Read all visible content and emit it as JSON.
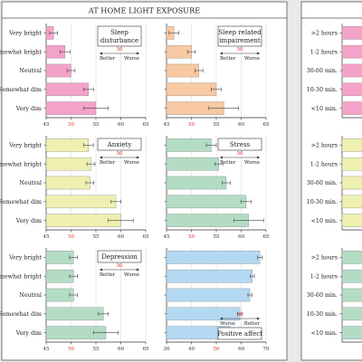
{
  "header": {
    "title": "AT HOME LIGHT EXPOSURE"
  },
  "scale_words": {
    "better": "Better",
    "worse": "Worse"
  },
  "panel_colors": {
    "pink": "#f4a3c8",
    "peach": "#f8c9a2",
    "yellow": "#eef0b0",
    "green": "#b4dcc4",
    "blue": "#b3d9f2",
    "arrow_red": "#d9302a"
  },
  "chart_data": [
    {
      "type": "bar",
      "orientation": "horizontal",
      "title": "Sleep disturbance",
      "title_lines": [
        "Sleep",
        "disturbance"
      ],
      "categories": [
        "Very bright",
        "Somewhat bright",
        "Neutral",
        "Somewhat dim",
        "Very dim"
      ],
      "values": [
        46.5,
        48.8,
        50.0,
        53.5,
        55.0
      ],
      "errors": [
        0.8,
        1.0,
        0.8,
        1.0,
        2.5
      ],
      "xlim": [
        45,
        65
      ],
      "xticks": [
        45,
        50,
        55,
        60,
        65
      ],
      "reference": 50,
      "direction": "higher_worse",
      "color": "#f4a3c8"
    },
    {
      "type": "bar",
      "orientation": "horizontal",
      "title": "Sleep related impairement",
      "title_lines": [
        "Sleep related",
        "impairement"
      ],
      "categories": [
        "Very bright",
        "Somewhat bright",
        "Neutral",
        "Somewhat dim",
        "Very dim"
      ],
      "values": [
        46.5,
        50.0,
        51.5,
        55.0,
        56.5
      ],
      "errors": [
        1.0,
        0.8,
        0.8,
        1.0,
        3.0
      ],
      "xlim": [
        45,
        65
      ],
      "xticks": [
        45,
        50,
        55,
        60,
        65
      ],
      "reference": 50,
      "direction": "higher_worse",
      "color": "#f8c9a2"
    },
    {
      "type": "bar",
      "orientation": "horizontal",
      "title": "Anxiety",
      "title_lines": [
        "Anxiety"
      ],
      "categories": [
        "Very bright",
        "Somewhat bright",
        "Neutral",
        "Somewhat dim",
        "Very dim"
      ],
      "values": [
        53.5,
        54.0,
        53.8,
        59.0,
        60.0
      ],
      "errors": [
        1.0,
        0.8,
        0.8,
        1.0,
        2.5
      ],
      "xlim": [
        45,
        65
      ],
      "xticks": [
        45,
        50,
        55,
        60,
        65
      ],
      "reference": 50,
      "direction": "higher_worse",
      "color": "#eef0b0"
    },
    {
      "type": "bar",
      "orientation": "horizontal",
      "title": "Stress",
      "title_lines": [
        "Stress"
      ],
      "categories": [
        "Very bright",
        "Somewhat bright",
        "Neutral",
        "Somewhat dim",
        "Very dim"
      ],
      "values": [
        54.0,
        55.5,
        57.0,
        61.0,
        61.5
      ],
      "errors": [
        1.0,
        0.8,
        0.8,
        1.0,
        3.0
      ],
      "xlim": [
        45,
        65
      ],
      "xticks": [
        45,
        50,
        55,
        60,
        65
      ],
      "reference": 50,
      "direction": "higher_worse",
      "color": "#b4dcc4"
    },
    {
      "type": "bar",
      "orientation": "horizontal",
      "title": "Depression",
      "title_lines": [
        "Depression"
      ],
      "categories": [
        "Very bright",
        "Somewhat bright",
        "Neutral",
        "Somewhat dim",
        "Very dim"
      ],
      "values": [
        50.5,
        50.5,
        50.5,
        56.5,
        57.0
      ],
      "errors": [
        0.8,
        0.8,
        0.8,
        1.0,
        2.5
      ],
      "xlim": [
        45,
        65
      ],
      "xticks": [
        45,
        50,
        55,
        60,
        65
      ],
      "reference": 50,
      "direction": "higher_worse",
      "color": "#b4dcc4"
    },
    {
      "type": "bar",
      "orientation": "horizontal",
      "title": "Positive affect",
      "title_lines": [
        "Positive affect"
      ],
      "categories": [
        "Very bright",
        "Somewhat bright",
        "Neutral",
        "Somewhat dim",
        "Very dim"
      ],
      "values": [
        67.5,
        64.5,
        63.5,
        59.5,
        55.5
      ],
      "errors": [
        1.0,
        0.8,
        0.8,
        1.0,
        3.0
      ],
      "xlim": [
        30,
        70
      ],
      "xticks": [
        30,
        40,
        50,
        60,
        70
      ],
      "reference": 50,
      "direction": "higher_better",
      "color": "#b3d9f2"
    }
  ],
  "right_panels": [
    {
      "categories": [
        ">2 hours",
        "1-2 hours",
        "30-60 min.",
        "10-30 min.",
        "<10 min."
      ],
      "color": "#f4a3c8"
    },
    {
      "categories": [
        ">2 hours",
        "1-2 hours",
        "30-60 min.",
        "10-30 min.",
        "<10 min."
      ],
      "color": "#eef0b0"
    },
    {
      "categories": [
        ">2 hours",
        "1-2 hours",
        "30-60 min.",
        "10-30 min.",
        "<10 min."
      ],
      "color": "#b4dcc4"
    }
  ]
}
